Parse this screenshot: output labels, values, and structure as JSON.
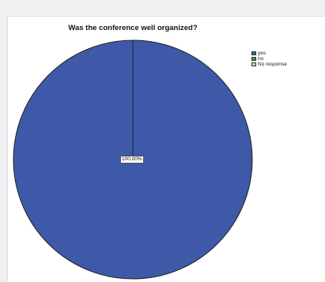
{
  "chart_data": {
    "type": "pie",
    "title": "Was the conference well organized?",
    "categories": [
      "yes",
      "no",
      "No response"
    ],
    "values": [
      100,
      0,
      0
    ],
    "data_labels": [
      "100.00%"
    ],
    "colors": [
      "#3e59a8",
      "#2e9e4a",
      "#d8d39a"
    ],
    "legend": "top-right"
  }
}
